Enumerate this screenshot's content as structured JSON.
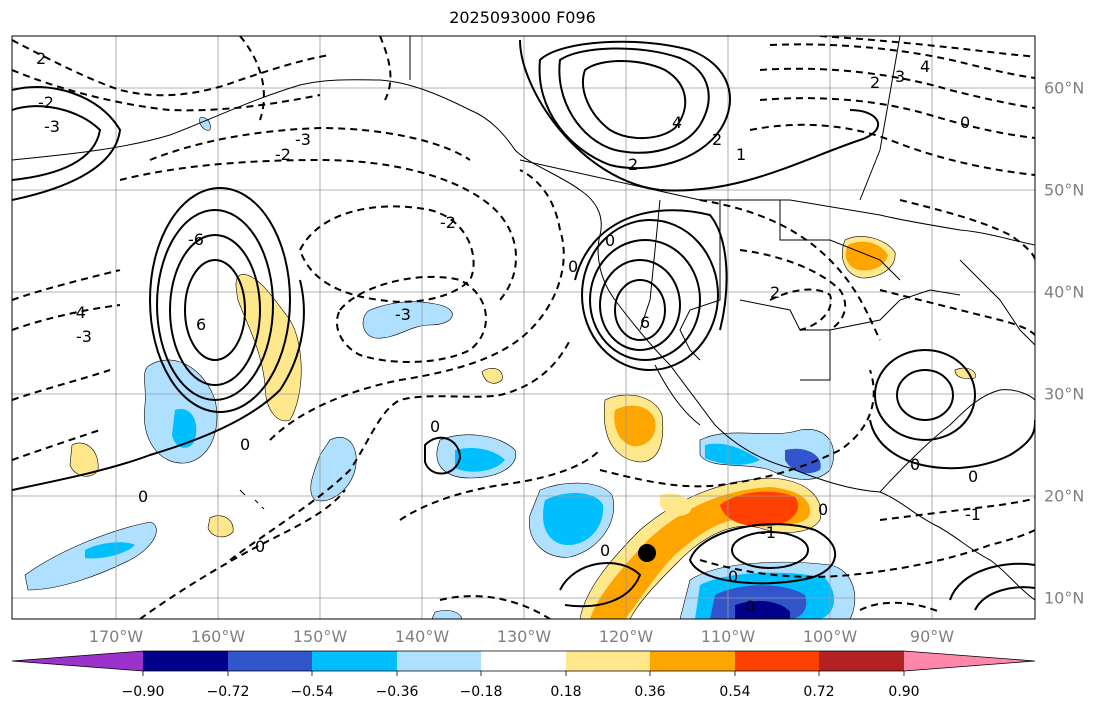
{
  "title": "2025093000 F096",
  "map": {
    "lon_range": [
      -180,
      -80
    ],
    "lat_range": [
      8,
      65
    ],
    "lon_ticks": [
      "170°W",
      "160°W",
      "150°W",
      "140°W",
      "130°W",
      "120°W",
      "110°W",
      "100°W",
      "90°W"
    ],
    "lat_ticks": [
      "10°N",
      "20°N",
      "30°N",
      "40°N",
      "50°N",
      "60°N"
    ],
    "grid": true,
    "marker": {
      "name": "black-dot",
      "lon": -118,
      "lat": 14.5
    },
    "contour_labels": [
      "2",
      "-2",
      "-3",
      "-4",
      "0",
      "1",
      "-1",
      "3",
      "4",
      "6",
      "-6"
    ]
  },
  "colorbar": {
    "ticks": [
      "−0.90",
      "−0.72",
      "−0.54",
      "−0.36",
      "−0.18",
      "0.18",
      "0.36",
      "0.54",
      "0.72",
      "0.90"
    ],
    "colors": [
      "#9933cc",
      "#00008b",
      "#3355cc",
      "#00bfff",
      "#b0e0ff",
      "#ffffff",
      "#ffe88c",
      "#ffa500",
      "#ff4000",
      "#b22222",
      "#ff88aa"
    ]
  }
}
